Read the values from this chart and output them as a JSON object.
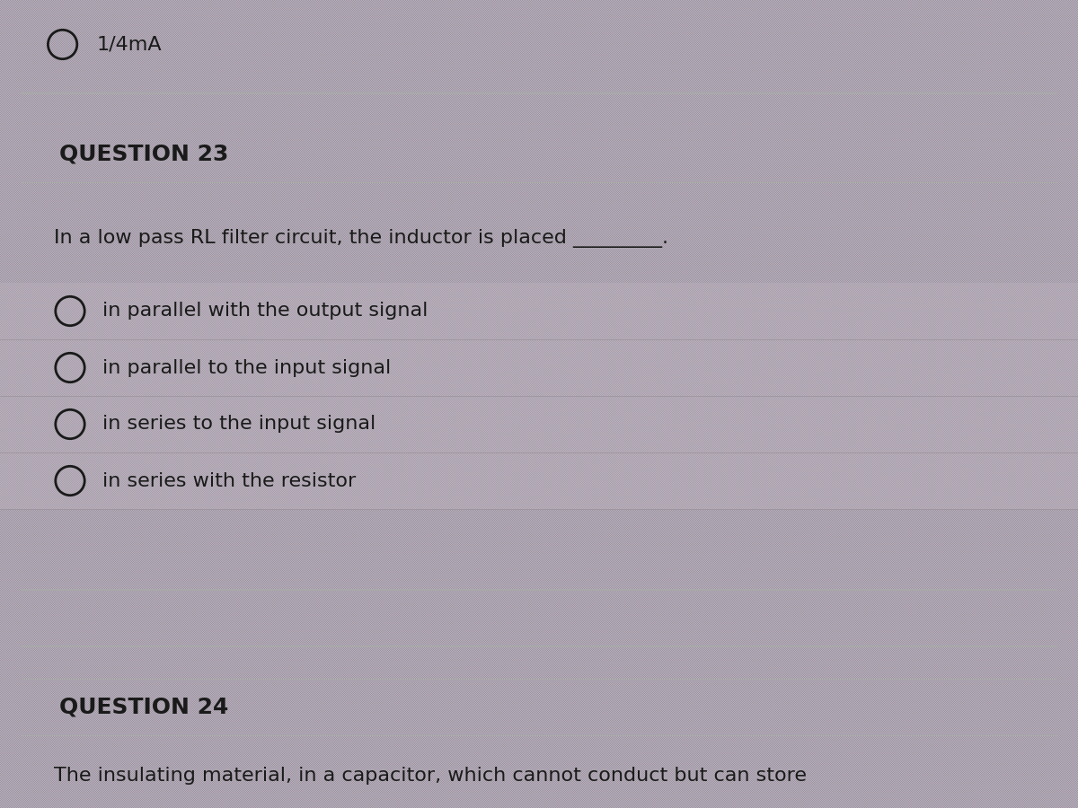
{
  "background_color": "#a8a0a8",
  "pixel_color_a": "#b8b0bc",
  "pixel_color_b": "#989098",
  "top_option_text": "1/4mA",
  "question23_header": "QUESTION 23",
  "question23_body": "In a low pass RL filter circuit, the inductor is placed _________.",
  "question23_options": [
    "in parallel with the output signal",
    "in parallel to the input signal",
    "in series to the input signal",
    "in series with the resistor"
  ],
  "question24_header": "QUESTION 24",
  "question24_body": "The insulating material, in a capacitor, which cannot conduct but can store",
  "divider_color": "#aaaaaa",
  "text_color": "#1a1a1a",
  "header_fontsize": 18,
  "body_fontsize": 16,
  "option_fontsize": 16,
  "fig_width": 12,
  "fig_height": 9
}
